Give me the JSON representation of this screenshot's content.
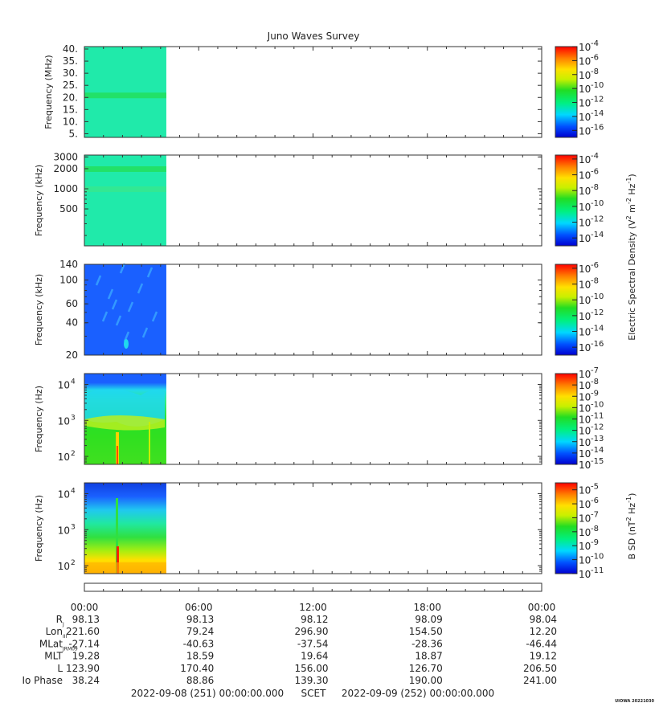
{
  "title": "Juno Waves Survey",
  "chart_data": [
    {
      "type": "heatmap",
      "ylabel": "Frequency (MHz)",
      "ylim": [
        3.5,
        41
      ],
      "yticks": [
        "40.",
        "35.",
        "30.",
        "25.",
        "20.",
        "15.",
        "10.",
        "5."
      ],
      "ytick_values": [
        40,
        35,
        30,
        25,
        20,
        15,
        10,
        5
      ],
      "yscale": "linear",
      "data_x_end_hours": 4.3,
      "colorbar_ticks": [
        "-4",
        "-6",
        "-8",
        "-10",
        "-12",
        "-14",
        "-16"
      ],
      "colorbar_range": [
        -17,
        -4
      ],
      "features": [
        {
          "kind": "band",
          "y": 21,
          "color": "#22e060"
        }
      ],
      "fill": "#20eaaa"
    },
    {
      "type": "heatmap",
      "ylabel": "Frequency (kHz)",
      "ylim": [
        140,
        3200
      ],
      "yscale": "log",
      "yticks": [
        "3000",
        "2000",
        "1000",
        "500"
      ],
      "ytick_values": [
        3000,
        2000,
        1000,
        500
      ],
      "data_x_end_hours": 4.3,
      "colorbar_ticks": [
        "-4",
        "-6",
        "-8",
        "-10",
        "-12",
        "-14"
      ],
      "colorbar_range": [
        -15,
        -3.5
      ],
      "features": [
        {
          "kind": "band",
          "y": 2000,
          "color": "#22e060"
        },
        {
          "kind": "band",
          "y": 1000,
          "color": "#34e890"
        }
      ],
      "fill": "#20eaaa"
    },
    {
      "type": "heatmap",
      "ylabel": "Frequency (kHz)",
      "ylim": [
        20,
        140
      ],
      "yscale": "log",
      "yticks": [
        "140",
        "100",
        "60",
        "40",
        "20"
      ],
      "ytick_values": [
        140,
        100,
        60,
        40,
        20
      ],
      "data_x_end_hours": 4.3,
      "colorbar_ticks": [
        "-6",
        "-8",
        "-10",
        "-12",
        "-14",
        "-16"
      ],
      "colorbar_range": [
        -17,
        -5.5
      ],
      "features": [],
      "fill": "#1a60ff"
    },
    {
      "type": "heatmap",
      "ylabel": "Frequency (Hz)",
      "ylim": [
        60,
        20000
      ],
      "yscale": "log",
      "yticks": [
        {
          "base": "10",
          "exp": "4"
        },
        {
          "base": "10",
          "exp": "3"
        },
        {
          "base": "10",
          "exp": "2"
        }
      ],
      "ytick_values": [
        10000,
        1000,
        100
      ],
      "data_x_end_hours": 4.3,
      "colorbar_ticks": [
        "-7",
        "-8",
        "-9",
        "-10",
        "-11",
        "-12",
        "-13",
        "-14",
        "-15"
      ],
      "colorbar_range": [
        -15,
        -7
      ],
      "features": [],
      "fill": "#22dd22"
    },
    {
      "type": "heatmap",
      "ylabel": "Frequency (Hz)",
      "ylim": [
        60,
        20000
      ],
      "yscale": "log",
      "yticks": [
        {
          "base": "10",
          "exp": "4"
        },
        {
          "base": "10",
          "exp": "3"
        },
        {
          "base": "10",
          "exp": "2"
        }
      ],
      "ytick_values": [
        10000,
        1000,
        100
      ],
      "data_x_end_hours": 4.3,
      "colorbar_ticks": [
        "-5",
        "-6",
        "-7",
        "-8",
        "-9",
        "-10",
        "-11"
      ],
      "colorbar_range": [
        -11,
        -4.5
      ],
      "features": [],
      "fill": "#22dd22"
    }
  ],
  "colorbar_base": "10",
  "colorbar_label_electric": {
    "prefix": "Electric Spectral Density (V",
    "unit": "2",
    "mid": " m",
    "m_exp": "-2",
    "hz": " Hz",
    "hz_exp": "-1",
    "suffix": ")"
  },
  "colorbar_label_magnetic": {
    "prefix": "B SD (nT",
    "unit": "2",
    "hz": " Hz",
    "hz_exp": "-1",
    "suffix": ")"
  },
  "x_axis": {
    "tick_labels": [
      "00:00",
      "06:00",
      "12:00",
      "18:00",
      "00:00"
    ],
    "range_hours": [
      0,
      24
    ]
  },
  "ephemeris": {
    "rows": [
      {
        "label": "R",
        "sub": "J",
        "values": [
          "98.13",
          "98.13",
          "98.12",
          "98.09",
          "98.04"
        ]
      },
      {
        "label": "Lon",
        "sub": "III",
        "values": [
          "221.60",
          "79.24",
          "296.90",
          "154.50",
          "12.20"
        ]
      },
      {
        "label": "MLat",
        "sub": "JRM09",
        "values": [
          "-27.14",
          "-40.63",
          "-37.54",
          "-28.36",
          "-46.44"
        ]
      },
      {
        "label": "MLT",
        "sub": "",
        "values": [
          "19.28",
          "18.59",
          "19.64",
          "18.87",
          "19.12"
        ]
      },
      {
        "label": "L",
        "sub": "",
        "values": [
          "123.90",
          "170.40",
          "156.00",
          "126.70",
          "206.50"
        ]
      },
      {
        "label": "Io Phase",
        "sub": "",
        "values": [
          "38.24",
          "88.86",
          "139.30",
          "190.00",
          "241.00"
        ]
      }
    ]
  },
  "footer": {
    "start": "2022-09-08 (251) 00:00:00.000",
    "scet": "SCET",
    "end": "2022-09-09 (252) 00:00:00.000",
    "stamp": "UIOWA 20221030"
  }
}
